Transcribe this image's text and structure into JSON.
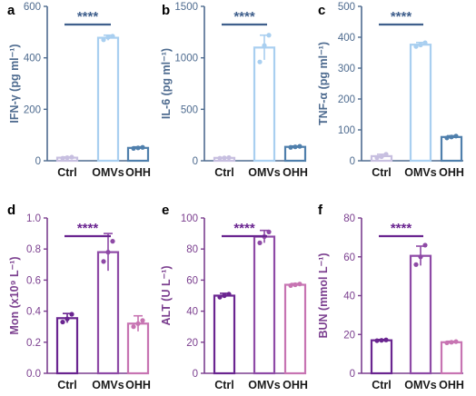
{
  "chart_data": [
    {
      "type": "bar",
      "panel": "a",
      "ylabel": "IFN-γ (pg ml⁻¹)",
      "categories": [
        "Ctrl",
        "OMVs",
        "OHH"
      ],
      "values": [
        12,
        478,
        50
      ],
      "errors": [
        3,
        10,
        4
      ],
      "points": [
        [
          10,
          12,
          14
        ],
        [
          470,
          480,
          484
        ],
        [
          48,
          50,
          52
        ]
      ],
      "ylim": [
        0,
        600
      ],
      "yticks": [
        "0",
        "200",
        "400",
        "600"
      ],
      "significance": {
        "from": "Ctrl",
        "to": "OMVs",
        "label": "****"
      },
      "colors": [
        "#c7bfe0",
        "#a9cff0",
        "#4f7fac"
      ],
      "axis_color": "#4e6b8f"
    },
    {
      "type": "bar",
      "panel": "b",
      "ylabel": "IL-6 (pg ml⁻¹)",
      "categories": [
        "Ctrl",
        "OMVs",
        "OHH"
      ],
      "values": [
        28,
        1100,
        135
      ],
      "errors": [
        4,
        120,
        8
      ],
      "points": [
        [
          25,
          28,
          31
        ],
        [
          960,
          1120,
          1220
        ],
        [
          130,
          135,
          140
        ]
      ],
      "ylim": [
        0,
        1500
      ],
      "yticks": [
        "0",
        "500",
        "1000",
        "1500"
      ],
      "significance": {
        "from": "Ctrl",
        "to": "OMVs",
        "label": "****"
      },
      "colors": [
        "#c7bfe0",
        "#a9cff0",
        "#4f7fac"
      ],
      "axis_color": "#4e6b8f"
    },
    {
      "type": "bar",
      "panel": "c",
      "ylabel": "TNF-α (pg ml⁻¹)",
      "categories": [
        "Ctrl",
        "OMVs",
        "OHH"
      ],
      "values": [
        15,
        376,
        77
      ],
      "errors": [
        6,
        7,
        4
      ],
      "points": [
        [
          10,
          13,
          21
        ],
        [
          370,
          375,
          382
        ],
        [
          74,
          77,
          80
        ]
      ],
      "ylim": [
        0,
        500
      ],
      "yticks": [
        "0",
        "100",
        "200",
        "300",
        "400",
        "500"
      ],
      "significance": {
        "from": "Ctrl",
        "to": "OMVs",
        "label": "****"
      },
      "colors": [
        "#c7bfe0",
        "#a9cff0",
        "#4f7fac"
      ],
      "axis_color": "#4e6b8f"
    },
    {
      "type": "bar",
      "panel": "d",
      "ylabel": "Mon (x10⁹ L⁻¹)",
      "categories": [
        "Ctrl",
        "OMVs",
        "OHH"
      ],
      "values": [
        0.355,
        0.78,
        0.32
      ],
      "errors": [
        0.03,
        0.12,
        0.05
      ],
      "points": [
        [
          0.33,
          0.35,
          0.38
        ],
        [
          0.72,
          0.78,
          0.85
        ],
        [
          0.3,
          0.32,
          0.34
        ]
      ],
      "ylim": [
        0,
        1.0
      ],
      "yticks": [
        "0.0",
        "0.2",
        "0.4",
        "0.6",
        "0.8",
        "1.0"
      ],
      "significance": {
        "from": "Ctrl",
        "to": "OMVs",
        "label": "****"
      },
      "colors": [
        "#6a2590",
        "#8e4aa6",
        "#c774b2"
      ],
      "axis_color": "#7b3f8f"
    },
    {
      "type": "bar",
      "panel": "e",
      "ylabel": "ALT (U L⁻¹)",
      "categories": [
        "Ctrl",
        "OMVs",
        "OHH"
      ],
      "values": [
        50,
        88,
        57
      ],
      "errors": [
        1.5,
        4,
        0.8
      ],
      "points": [
        [
          49,
          50,
          51
        ],
        [
          84,
          88,
          91
        ],
        [
          56.5,
          57,
          57.5
        ]
      ],
      "ylim": [
        0,
        100
      ],
      "yticks": [
        "0",
        "20",
        "40",
        "60",
        "80",
        "100"
      ],
      "significance": {
        "from": "Ctrl",
        "to": "OMVs",
        "label": "****"
      },
      "colors": [
        "#6a2590",
        "#8e4aa6",
        "#c774b2"
      ],
      "axis_color": "#7b3f8f"
    },
    {
      "type": "bar",
      "panel": "f",
      "ylabel": "BUN (mmol L⁻¹)",
      "categories": [
        "Ctrl",
        "OMVs",
        "OHH"
      ],
      "values": [
        17,
        60.5,
        16
      ],
      "errors": [
        0.4,
        5,
        0.5
      ],
      "points": [
        [
          16.8,
          17,
          17.2
        ],
        [
          56,
          60,
          66
        ],
        [
          15.7,
          16,
          16.3
        ]
      ],
      "ylim": [
        0,
        80
      ],
      "yticks": [
        "0",
        "20",
        "40",
        "60",
        "80"
      ],
      "significance": {
        "from": "Ctrl",
        "to": "OMVs",
        "label": "****"
      },
      "colors": [
        "#6a2590",
        "#8e4aa6",
        "#c774b2"
      ],
      "axis_color": "#7b3f8f"
    }
  ]
}
